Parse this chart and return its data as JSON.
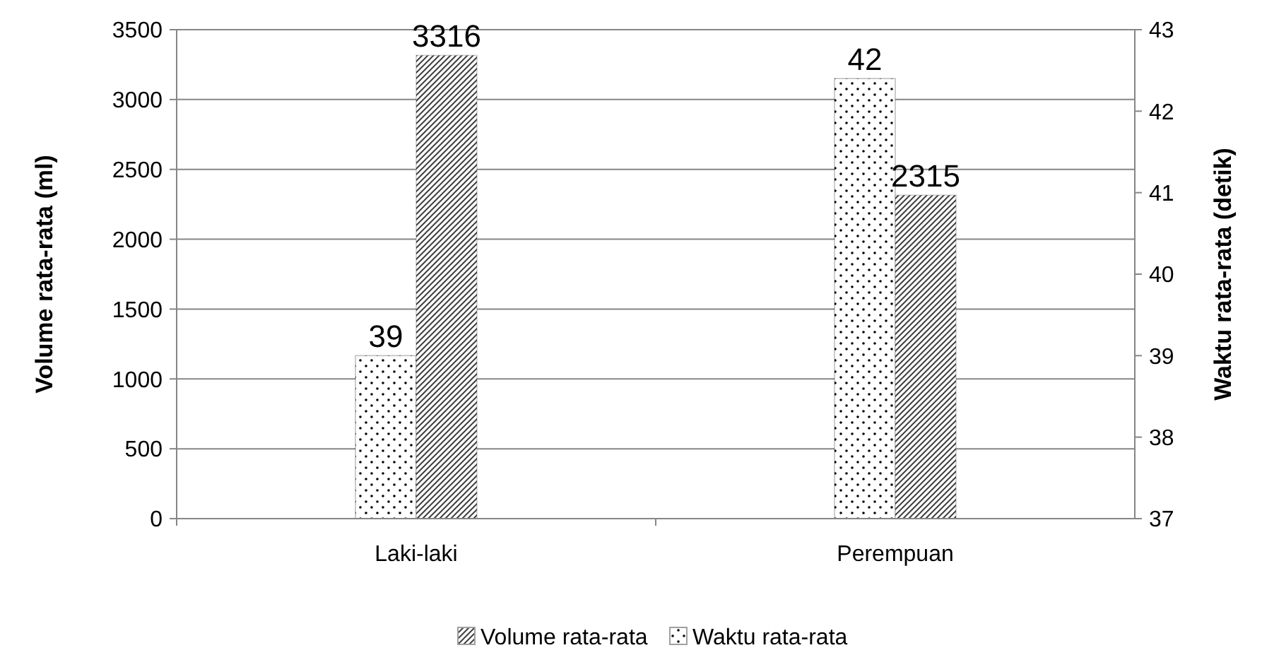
{
  "chart_data": {
    "type": "bar",
    "categories": [
      "Laki-laki",
      "Perempuan"
    ],
    "ylabel": "Volume rata-rata (ml)",
    "y2label": "Waktu rata-rata (detik)",
    "ylim": [
      0,
      3500
    ],
    "yticks": [
      0,
      500,
      1000,
      1500,
      2000,
      2500,
      3000,
      3500
    ],
    "y2lim": [
      37,
      43
    ],
    "y2ticks": [
      37,
      38,
      39,
      40,
      41,
      42,
      43
    ],
    "grid": "y",
    "legend": "bottom",
    "series": [
      {
        "name": "Waktu rata-rata",
        "color": "#000000",
        "axis": "y2",
        "values": [
          39,
          42.4
        ],
        "value_labels": [
          "39",
          "42"
        ]
      },
      {
        "name": "Volume rata-rata",
        "color": "#404040",
        "values": [
          3316,
          2315
        ],
        "value_labels": [
          "3316",
          "2315"
        ]
      }
    ]
  }
}
